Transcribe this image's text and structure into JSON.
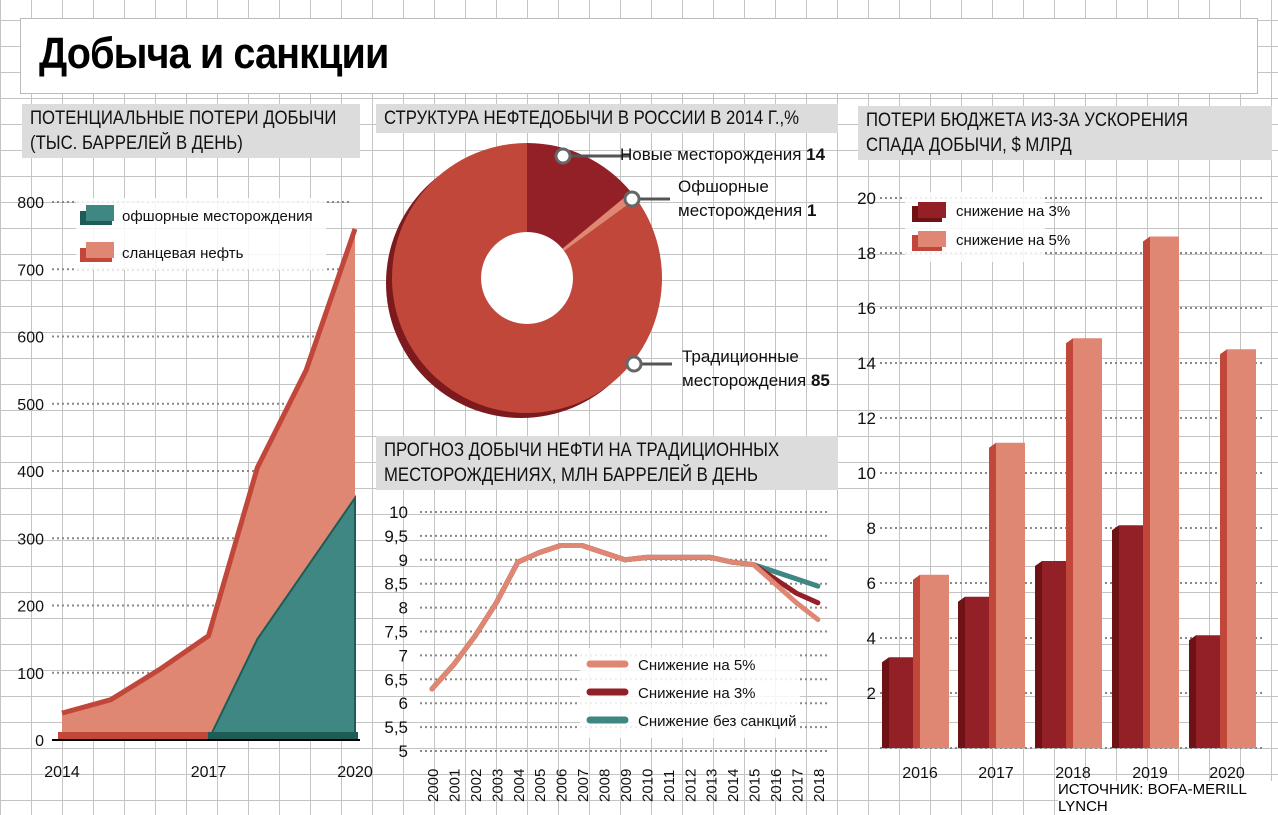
{
  "title": "Добыча и санкции",
  "source": "ИСТОЧНИК: BOFA-MERILL LYNCH",
  "colors": {
    "teal": "#3e8782",
    "teal_dark": "#1e5c58",
    "salmon": "#df8772",
    "red": "#c0473a",
    "dark_red": "#932027",
    "darker_red": "#6e1216"
  },
  "chart_data": [
    {
      "type": "area",
      "title_lines": [
        "ПОТЕНЦИАЛЬНЫЕ ПОТЕРИ ДОБЫЧИ",
        "(ТЫС. БАРРЕЛЕЙ В ДЕНЬ)"
      ],
      "x": [
        2014,
        2015,
        2016,
        2017,
        2018,
        2019,
        2020
      ],
      "xticks": [
        "2014",
        "2017",
        "2020"
      ],
      "yticks": [
        "0",
        "100",
        "200",
        "300",
        "400",
        "500",
        "600",
        "700",
        "800"
      ],
      "ylim": [
        0,
        800
      ],
      "stacked": true,
      "series": [
        {
          "name": "офшорные месторождения",
          "values": [
            0,
            0,
            0,
            0,
            150,
            255,
            360
          ]
        },
        {
          "name": "сланцевая нефть",
          "values": [
            40,
            60,
            105,
            155,
            255,
            295,
            400
          ]
        }
      ]
    },
    {
      "type": "pie",
      "title": "СТРУКТУРА НЕФТЕДОБЫЧИ В РОССИИ В 2014 Г.,%",
      "slices": [
        {
          "label": [
            "Новые месторождения"
          ],
          "value": 14
        },
        {
          "label": [
            "Офшорные",
            "месторождения"
          ],
          "value": 1
        },
        {
          "label": [
            "Традиционные",
            "месторождения"
          ],
          "value": 85
        }
      ]
    },
    {
      "type": "line",
      "title_lines": [
        "ПРОГНОЗ ДОБЫЧИ НЕФТИ НА ТРАДИЦИОННЫХ",
        "МЕСТОРОЖДЕНИЯХ, МЛН БАРРЕЛЕЙ В ДЕНЬ"
      ],
      "x": [
        "2000",
        "2001",
        "2002",
        "2003",
        "2004",
        "2005",
        "2006",
        "2007",
        "2008",
        "2009",
        "2010",
        "2011",
        "2012",
        "2013",
        "2014",
        "2015",
        "2016",
        "2017",
        "2018"
      ],
      "yticks": [
        "5",
        "5,5",
        "6",
        "6,5",
        "7",
        "7,5",
        "8",
        "8,5",
        "9",
        "9,5",
        "10"
      ],
      "ylim": [
        5,
        10
      ],
      "series": [
        {
          "name": "Снижение без санкций",
          "values": [
            6.3,
            6.8,
            7.4,
            8.1,
            8.95,
            9.15,
            9.3,
            9.3,
            9.15,
            9.0,
            9.05,
            9.05,
            9.05,
            9.05,
            8.95,
            8.9,
            8.75,
            8.6,
            8.45
          ]
        },
        {
          "name": "Снижение на 3%",
          "values": [
            6.3,
            6.8,
            7.4,
            8.1,
            8.95,
            9.15,
            9.3,
            9.3,
            9.15,
            9.0,
            9.05,
            9.05,
            9.05,
            9.05,
            8.95,
            8.9,
            8.6,
            8.3,
            8.1
          ]
        },
        {
          "name": "Снижение на 5%",
          "values": [
            6.3,
            6.8,
            7.4,
            8.1,
            8.95,
            9.15,
            9.3,
            9.3,
            9.15,
            9.0,
            9.05,
            9.05,
            9.05,
            9.05,
            8.95,
            8.9,
            8.5,
            8.1,
            7.75
          ]
        }
      ],
      "legend_order": [
        "Снижение на 5%",
        "Снижение на 3%",
        "Снижение без санкций"
      ]
    },
    {
      "type": "bar",
      "title_lines": [
        "ПОТЕРИ БЮДЖЕТА ИЗ-ЗА УСКОРЕНИЯ",
        "СПАДА ДОБЫЧИ, $ МЛРД"
      ],
      "categories": [
        "2016",
        "2017",
        "2018",
        "2019",
        "2020"
      ],
      "yticks": [
        "2",
        "4",
        "6",
        "8",
        "10",
        "12",
        "14",
        "16",
        "18",
        "20"
      ],
      "ylim": [
        0,
        20
      ],
      "series": [
        {
          "name": "снижение на 3%",
          "values": [
            3.3,
            5.5,
            6.8,
            8.1,
            4.1
          ]
        },
        {
          "name": "снижение на 5%",
          "values": [
            6.3,
            11.1,
            14.9,
            18.6,
            14.5
          ]
        }
      ]
    }
  ]
}
